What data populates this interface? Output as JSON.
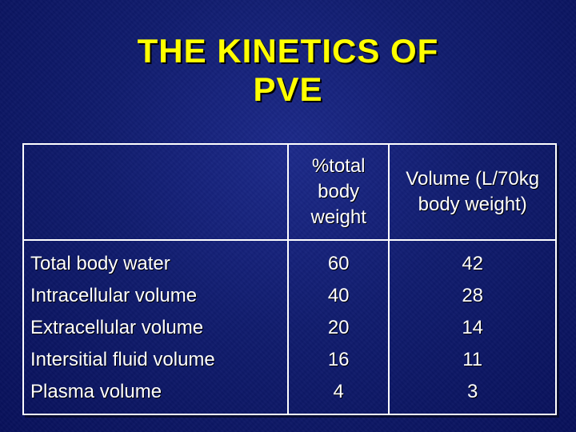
{
  "slide": {
    "title_line1": "THE KINETICS OF",
    "title_line2": "PVE"
  },
  "table": {
    "headers": {
      "label": "",
      "percent": "%total body weight",
      "volume": "Volume (L/70kg body weight)"
    },
    "rows": [
      {
        "label": "Total body water",
        "percent": "60",
        "volume": "42"
      },
      {
        "label": "Intracellular volume",
        "percent": "40",
        "volume": "28"
      },
      {
        "label": "Extracellular volume",
        "percent": "20",
        "volume": "14"
      },
      {
        "label": "Intersitial fluid volume",
        "percent": "16",
        "volume": "11"
      },
      {
        "label": "Plasma volume",
        "percent": "4",
        "volume": "3"
      }
    ]
  },
  "colors": {
    "background": "#101c6e",
    "title": "#ffff00",
    "text": "#ffffff",
    "border": "#ffffff"
  }
}
